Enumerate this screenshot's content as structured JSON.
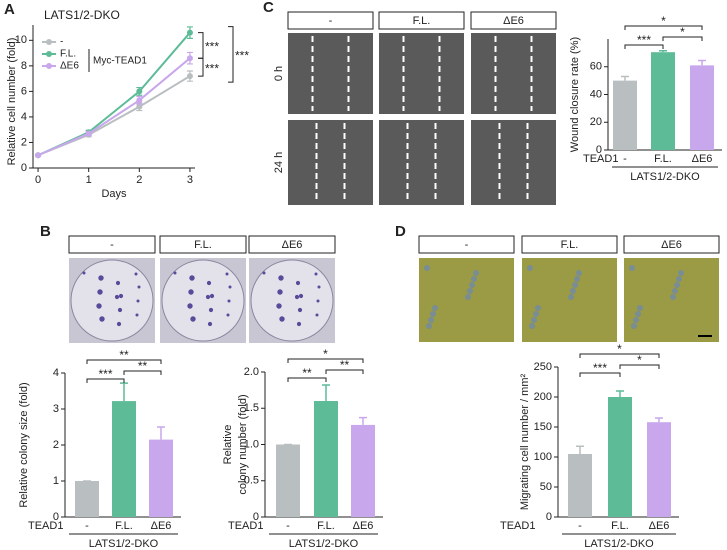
{
  "chart_data": [
    {
      "type": "line",
      "panel": "A",
      "title": "LATS1/2-DKO",
      "xlabel": "Days",
      "ylabel": "Relative cell number (fold)",
      "annotation": "Myc-TEAD1",
      "x": [
        0,
        1,
        2,
        3
      ],
      "xlim": [
        -0.1,
        3.1
      ],
      "xticks": [
        0,
        1,
        2,
        3
      ],
      "ylim": [
        0,
        11.2
      ],
      "yticks": [
        0,
        2,
        4,
        6,
        8,
        10
      ],
      "series": [
        {
          "name": "-",
          "color": "#b9bec0",
          "values": [
            1,
            2.6,
            4.8,
            7.2
          ],
          "errors": [
            0.05,
            0.15,
            0.3,
            0.4
          ]
        },
        {
          "name": "F.L.",
          "color": "#5dbb97",
          "values": [
            1,
            2.8,
            6.0,
            10.6
          ],
          "errors": [
            0.05,
            0.15,
            0.3,
            0.45
          ]
        },
        {
          "name": "ΔE6",
          "color": "#c9a7ec",
          "values": [
            1,
            2.7,
            5.3,
            8.6
          ],
          "errors": [
            0.05,
            0.15,
            0.3,
            0.45
          ]
        }
      ],
      "significance": [
        "***",
        "***",
        "***"
      ]
    },
    {
      "type": "bar",
      "panel": "C",
      "ylabel": "Wound closure rate (%)",
      "group_label": "TEAD1",
      "group": "LATS1/2-DKO",
      "image_labels": [
        "-",
        "F.L.",
        "ΔE6"
      ],
      "row_labels": [
        "0 h",
        "24 h"
      ],
      "categories": [
        "-",
        "F.L.",
        "ΔE6"
      ],
      "values": [
        50,
        70.5,
        61
      ],
      "errors": [
        3,
        1,
        3.5
      ],
      "colors": [
        "#b9bec0",
        "#5dbb97",
        "#c9a7ec"
      ],
      "ylim": [
        0,
        80
      ],
      "yticks": [
        0,
        20,
        40,
        60
      ],
      "significance": [
        "***",
        "*",
        "*"
      ]
    },
    {
      "type": "bar",
      "panel": "B",
      "ylabel": "Relative colony size (fold)",
      "group_label": "TEAD1",
      "group": "LATS1/2-DKO",
      "image_labels": [
        "-",
        "F.L.",
        "ΔE6"
      ],
      "categories": [
        "-",
        "F.L.",
        "ΔE6"
      ],
      "values": [
        1,
        3.22,
        2.15
      ],
      "errors": [
        0,
        0.5,
        0.35
      ],
      "colors": [
        "#b9bec0",
        "#5dbb97",
        "#c9a7ec"
      ],
      "ylim": [
        0,
        4
      ],
      "yticks": [
        0,
        1,
        2,
        3,
        4
      ],
      "significance": [
        "***",
        "**",
        "**"
      ]
    },
    {
      "type": "bar",
      "ylabel_lines": [
        "Relative",
        "colony number (fold)"
      ],
      "group_label": "TEAD1",
      "group": "LATS1/2-DKO",
      "categories": [
        "-",
        "F.L.",
        "ΔE6"
      ],
      "values": [
        1,
        1.6,
        1.27
      ],
      "errors": [
        0,
        0.22,
        0.1
      ],
      "colors": [
        "#b9bec0",
        "#5dbb97",
        "#c9a7ec"
      ],
      "ylim": [
        0,
        2
      ],
      "yticks": [
        0,
        0.5,
        {
          "value": 1,
          "label": "1.0"
        },
        1.5,
        {
          "value": 2,
          "label": "2.0"
        }
      ],
      "significance": [
        "**",
        "**",
        "*"
      ]
    },
    {
      "type": "bar",
      "panel": "D",
      "ylabel": "Migrating cell number / mm²",
      "group_label": "TEAD1",
      "group": "LATS1/2-DKO",
      "image_labels": [
        "-",
        "F.L.",
        "ΔE6"
      ],
      "categories": [
        "-",
        "F.L.",
        "ΔE6"
      ],
      "values": [
        105,
        200,
        158
      ],
      "errors": [
        13,
        10,
        7
      ],
      "colors": [
        "#b9bec0",
        "#5dbb97",
        "#c9a7ec"
      ],
      "ylim": [
        0,
        250
      ],
      "yticks": [
        0,
        50,
        100,
        150,
        200,
        250
      ],
      "significance": [
        "***",
        "*",
        "*"
      ]
    }
  ]
}
